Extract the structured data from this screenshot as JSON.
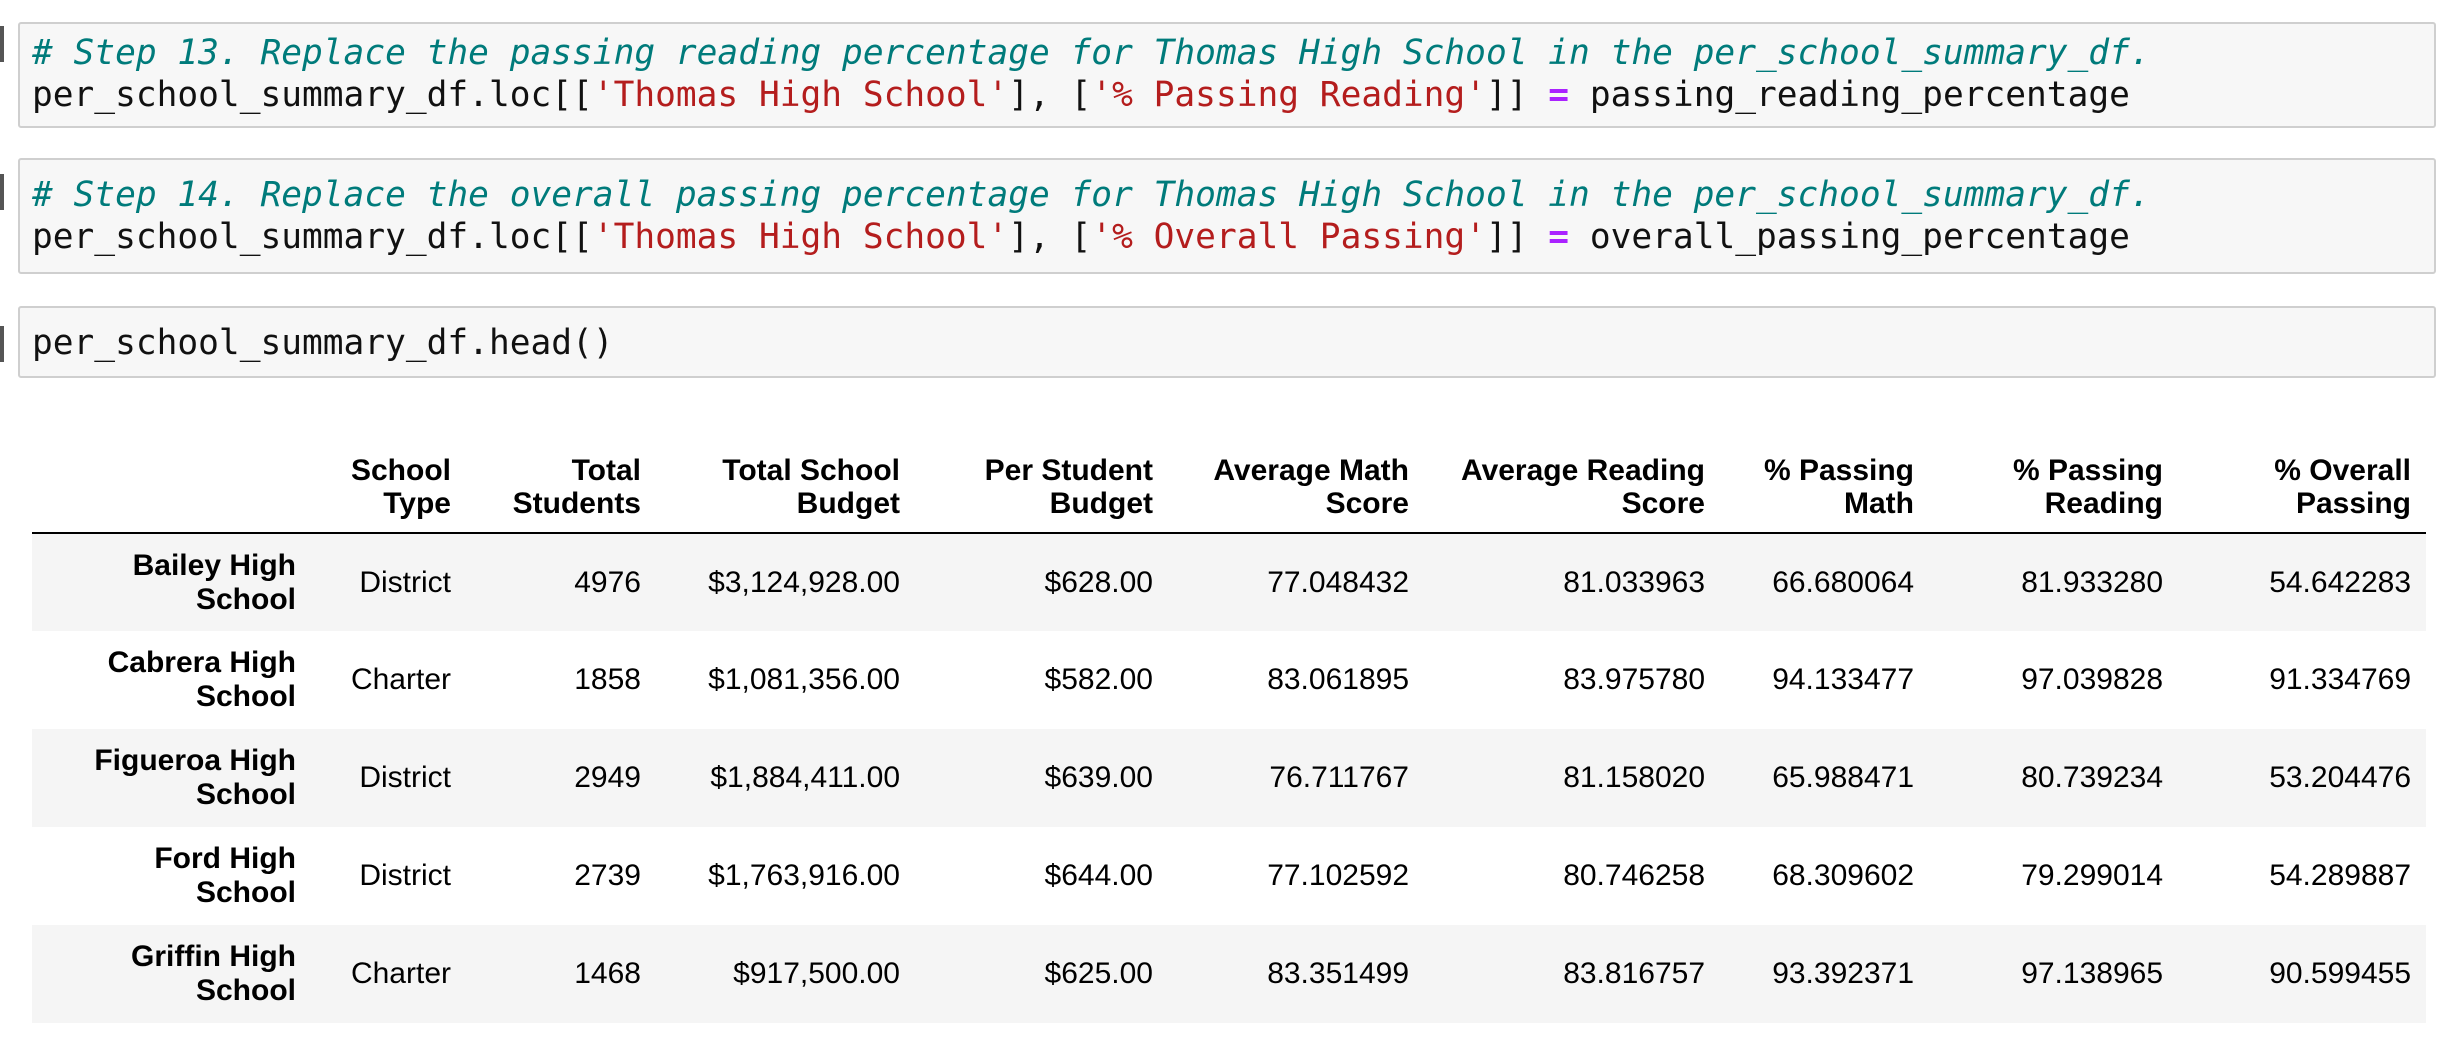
{
  "cells": [
    {
      "comment": "# Step 13. Replace the passing reading percentage for Thomas High School in the per_school_summary_df.",
      "code": {
        "prefix": "per_school_summary_df.loc[[",
        "str1": "'Thomas High School'",
        "mid": "], [",
        "str2": "'% Passing Reading'",
        "close": "]] ",
        "op": "=",
        "rhs": " passing_reading_percentage"
      }
    },
    {
      "comment": "# Step 14. Replace the overall passing percentage for Thomas High School in the per_school_summary_df.",
      "code": {
        "prefix": "per_school_summary_df.loc[[",
        "str1": "'Thomas High School'",
        "mid": "], [",
        "str2": "'% Overall Passing'",
        "close": "]] ",
        "op": "=",
        "rhs": " overall_passing_percentage"
      }
    },
    {
      "code": "per_school_summary_df.head()"
    }
  ],
  "table": {
    "headers": [
      {
        "l1": "",
        "l2": ""
      },
      {
        "l1": "School",
        "l2": "Type"
      },
      {
        "l1": "Total",
        "l2": "Students"
      },
      {
        "l1": "Total School",
        "l2": "Budget"
      },
      {
        "l1": "Per Student",
        "l2": "Budget"
      },
      {
        "l1": "Average Math",
        "l2": "Score"
      },
      {
        "l1": "Average Reading",
        "l2": "Score"
      },
      {
        "l1": "% Passing",
        "l2": "Math"
      },
      {
        "l1": "% Passing",
        "l2": "Reading"
      },
      {
        "l1": "% Overall",
        "l2": "Passing"
      }
    ],
    "rows": [
      {
        "n1": "Bailey High",
        "n2": "School",
        "cells": [
          "District",
          "4976",
          "$3,124,928.00",
          "$628.00",
          "77.048432",
          "81.033963",
          "66.680064",
          "81.933280",
          "54.642283"
        ]
      },
      {
        "n1": "Cabrera High",
        "n2": "School",
        "cells": [
          "Charter",
          "1858",
          "$1,081,356.00",
          "$582.00",
          "83.061895",
          "83.975780",
          "94.133477",
          "97.039828",
          "91.334769"
        ]
      },
      {
        "n1": "Figueroa High",
        "n2": "School",
        "cells": [
          "District",
          "2949",
          "$1,884,411.00",
          "$639.00",
          "76.711767",
          "81.158020",
          "65.988471",
          "80.739234",
          "53.204476"
        ]
      },
      {
        "n1": "Ford High",
        "n2": "School",
        "cells": [
          "District",
          "2739",
          "$1,763,916.00",
          "$644.00",
          "77.102592",
          "80.746258",
          "68.309602",
          "79.299014",
          "54.289887"
        ]
      },
      {
        "n1": "Griffin High",
        "n2": "School",
        "cells": [
          "Charter",
          "1468",
          "$917,500.00",
          "$625.00",
          "83.351499",
          "83.816757",
          "93.392371",
          "97.138965",
          "90.599455"
        ]
      }
    ]
  }
}
